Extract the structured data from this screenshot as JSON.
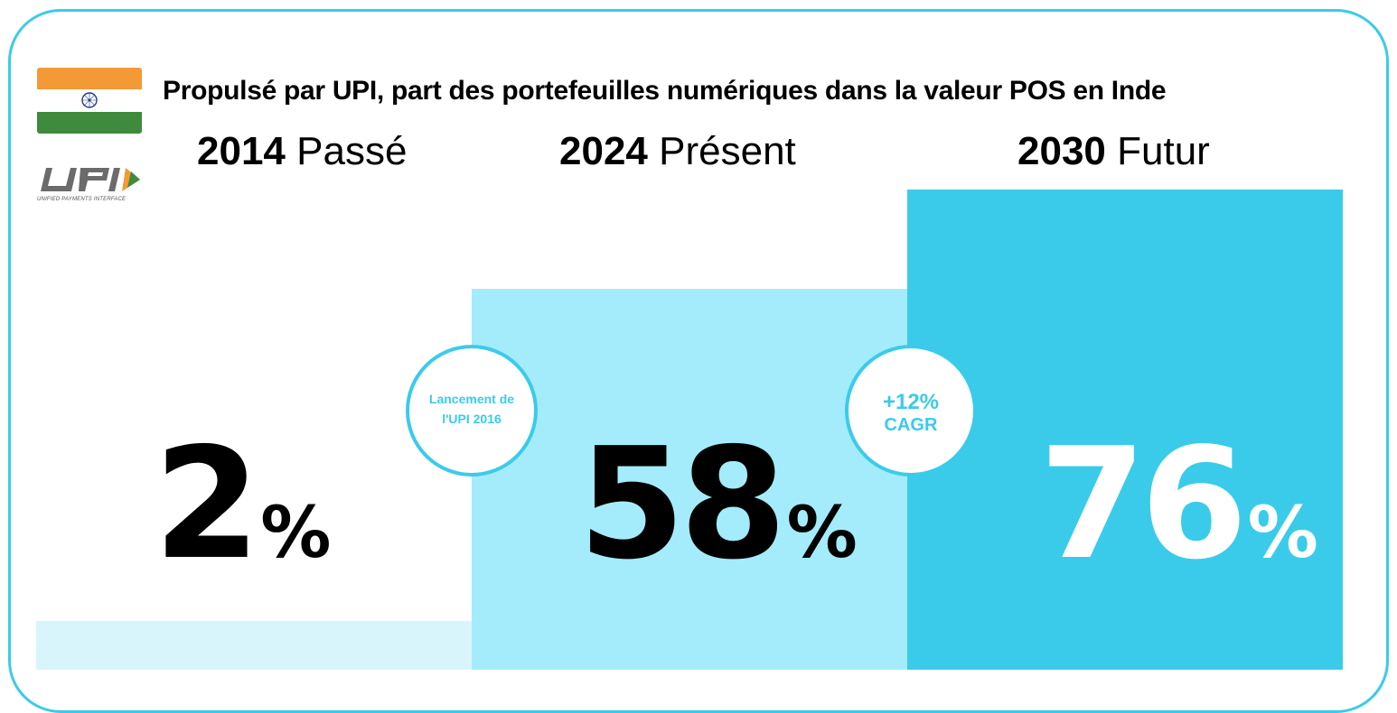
{
  "header": {
    "title": "Propulsé par UPI, part des portefeuilles numériques dans la valeur POS en Inde"
  },
  "logo": {
    "upi_tagline": "UNIFIED PAYMENTS INTERFACE"
  },
  "periods": [
    {
      "year": "2014",
      "label": "Passé"
    },
    {
      "year": "2024",
      "label": "Présent"
    },
    {
      "year": "2030",
      "label": "Futur"
    }
  ],
  "colors": {
    "accent": "#3bcbea",
    "bar_2014": "#d8f5fc",
    "bar_2024": "#a4ecfb",
    "bar_2030": "#3bcbea",
    "saffron": "#f39a36",
    "green": "#3f8a3c"
  },
  "chart_data": {
    "type": "bar",
    "title": "Propulsé par UPI, part des portefeuilles numériques dans la valeur POS en Inde",
    "categories": [
      "2014",
      "2024",
      "2030"
    ],
    "values": [
      2,
      58,
      76
    ],
    "value_labels": [
      "2",
      "58",
      "76"
    ],
    "unit": "%",
    "ylim": [
      0,
      100
    ],
    "annotations": [
      {
        "between": [
          "2014",
          "2024"
        ],
        "lines": [
          "Lancement de",
          "l'UPI 2016"
        ]
      },
      {
        "between": [
          "2024",
          "2030"
        ],
        "lines": [
          "+12%",
          "CAGR"
        ]
      }
    ]
  }
}
